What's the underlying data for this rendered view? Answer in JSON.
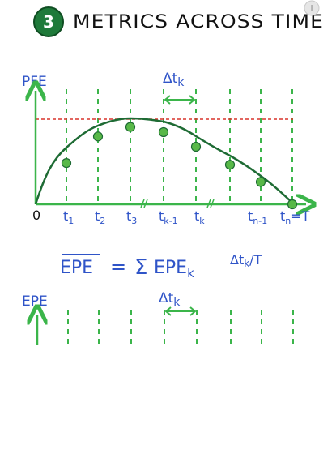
{
  "header": {
    "step_number": "3",
    "title": "METRICS ACROSS TIME",
    "info_icon_glyph": "i"
  },
  "colors": {
    "badge_fill": "#1f7a3a",
    "badge_ring": "#0f4d22",
    "axis_green": "#3bb54a",
    "curve": "#1e6b34",
    "point_fill": "#58b848",
    "dashed_red": "#d9342b",
    "blue_label": "#2f54c8",
    "text": "#111111"
  },
  "pfe_chart": {
    "ylabel": "PFE",
    "origin_label": "0",
    "delta_label": "Δt",
    "delta_sub": "k",
    "x_ticks": [
      {
        "main": "t",
        "sub": "1"
      },
      {
        "main": "t",
        "sub": "2"
      },
      {
        "main": "t",
        "sub": "3"
      },
      {
        "main": "t",
        "sub": "k-1"
      },
      {
        "main": "t",
        "sub": "k"
      },
      {
        "main": "t",
        "sub": "n-1"
      },
      {
        "main": "t",
        "sub": "n",
        "suffix": "=T"
      }
    ],
    "points_y": [
      0.48,
      0.79,
      0.9,
      0.84,
      0.67,
      0.46,
      0.26,
      0.0
    ]
  },
  "formula": {
    "lhs": "EPE",
    "equals": "=",
    "sigma": "Σ",
    "term": "EPE",
    "term_sub": "k",
    "factor": "Δt",
    "factor_sub": "k",
    "divisor": "/T"
  },
  "epe_chart": {
    "ylabel": "EPE",
    "delta_label": "Δt",
    "delta_sub": "k"
  }
}
